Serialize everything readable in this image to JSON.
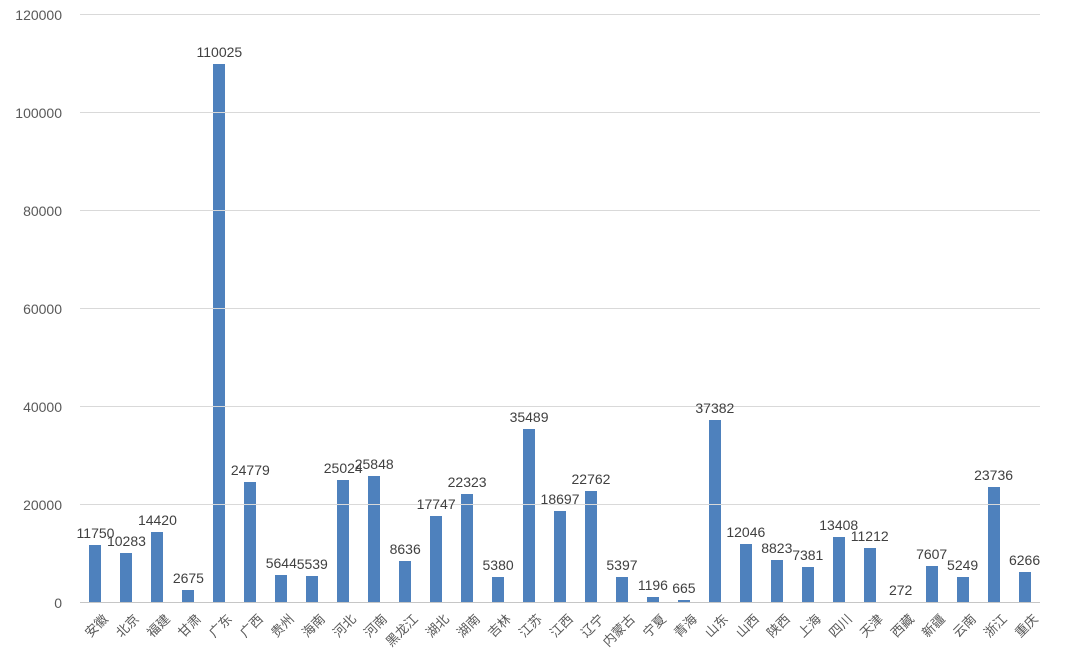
{
  "chart_data": {
    "type": "bar",
    "title": "",
    "xlabel": "",
    "ylabel": "",
    "categories": [
      "安徽",
      "北京",
      "福建",
      "甘肃",
      "广东",
      "广西",
      "贵州",
      "海南",
      "河北",
      "河南",
      "黑龙江",
      "湖北",
      "湖南",
      "吉林",
      "江苏",
      "江西",
      "辽宁",
      "内蒙古",
      "宁夏",
      "青海",
      "山东",
      "山西",
      "陕西",
      "上海",
      "四川",
      "天津",
      "西藏",
      "新疆",
      "云南",
      "浙江",
      "重庆"
    ],
    "values": [
      11750,
      10283,
      14420,
      2675,
      110025,
      24779,
      5644,
      5539,
      25024,
      25848,
      8636,
      17747,
      22323,
      5380,
      35489,
      18697,
      22762,
      5397,
      1196,
      665,
      37382,
      12046,
      8823,
      7381,
      13408,
      11212,
      272,
      7607,
      5249,
      23736,
      6266
    ],
    "data_labels_visible": true,
    "ylim": [
      0,
      120000
    ],
    "yticks": [
      0,
      20000,
      40000,
      60000,
      80000,
      100000,
      120000
    ],
    "grid": true,
    "legend": false,
    "colors": {
      "bar": "#4E81BD",
      "gridline": "#D9D9D9",
      "axis_line": "#C6C6C6",
      "axis_text": "#595959",
      "data_label_text": "#404040"
    }
  }
}
